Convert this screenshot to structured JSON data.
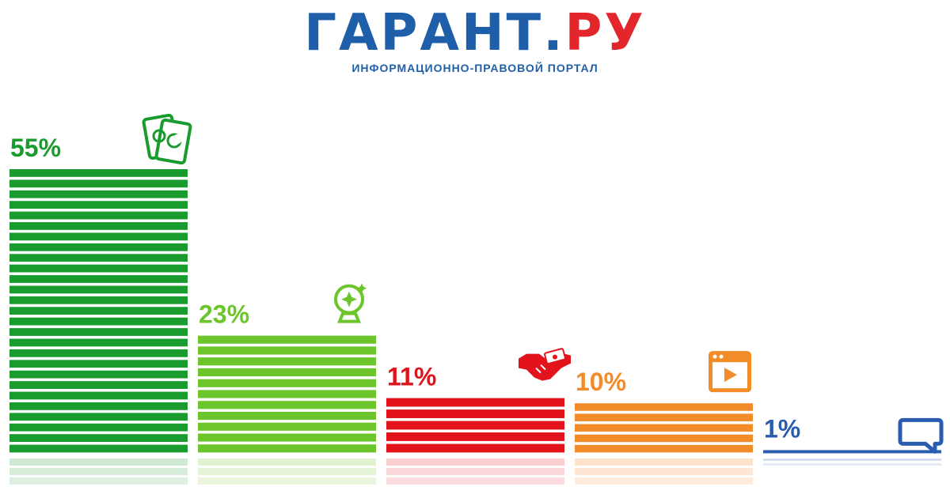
{
  "header": {
    "brand_main": "ГАРАНТ",
    "brand_dot": ".",
    "brand_tld": "РУ",
    "subtitle": "ИНФОРМАЦИОННО-ПРАВОВОЙ ПОРТАЛ"
  },
  "colors": {
    "brand_blue": "#1f5fa9",
    "brand_red": "#e3262b"
  },
  "chart_data": {
    "type": "bar",
    "categories": [
      "55%",
      "23%",
      "11%",
      "10%",
      "1%"
    ],
    "values": [
      55,
      23,
      11,
      10,
      1
    ],
    "labels": [
      "55%",
      "23%",
      "11%",
      "10%",
      "1%"
    ],
    "icons": [
      "tarot-cards-icon",
      "crystal-ball-icon",
      "handshake-money-icon",
      "video-player-icon",
      "chat-bubble-icon"
    ],
    "colors": [
      "#1a9b2e",
      "#6cc52a",
      "#e3131b",
      "#f28c28",
      "#2a5db0"
    ],
    "fade_colors": [
      "#cfe9d2",
      "#e0f2cf",
      "#f9cfd1",
      "#fde3cc",
      "#d3def0"
    ],
    "title": "",
    "xlabel": "",
    "ylabel": "",
    "ylim": [
      0,
      55
    ],
    "grid": false,
    "legend": "none"
  }
}
